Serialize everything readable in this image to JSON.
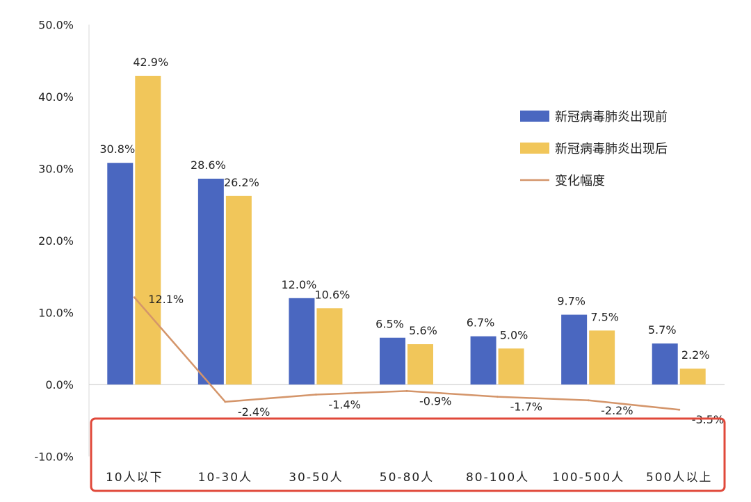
{
  "chart_data": {
    "type": "bar",
    "categories": [
      "10人以下",
      "10-30人",
      "30-50人",
      "50-80人",
      "80-100人",
      "100-500人",
      "500人以上"
    ],
    "series": [
      {
        "name": "新冠病毒肺炎出现前",
        "kind": "bar",
        "color": "#4a67c0",
        "values": [
          30.8,
          28.6,
          12.0,
          6.5,
          6.7,
          9.7,
          5.7
        ],
        "labels": [
          "30.8%",
          "28.6%",
          "12.0%",
          "6.5%",
          "6.7%",
          "9.7%",
          "5.7%"
        ]
      },
      {
        "name": "新冠病毒肺炎出现后",
        "kind": "bar",
        "color": "#f1c65a",
        "values": [
          42.9,
          26.2,
          10.6,
          5.6,
          5.0,
          7.5,
          2.2
        ],
        "labels": [
          "42.9%",
          "26.2%",
          "10.6%",
          "5.6%",
          "5.0%",
          "7.5%",
          "2.2%"
        ]
      },
      {
        "name": "变化幅度",
        "kind": "line",
        "color": "#d4956a",
        "values": [
          12.1,
          -2.4,
          -1.4,
          -0.9,
          -1.7,
          -2.2,
          -3.5
        ],
        "labels": [
          "12.1%",
          "-2.4%",
          "-1.4%",
          "-0.9%",
          "-1.7%",
          "-2.2%",
          "-3.5%"
        ]
      }
    ],
    "ylim": [
      -10,
      50
    ],
    "yticks": [
      50,
      40,
      30,
      20,
      10,
      0,
      -10
    ],
    "ytick_labels": [
      "50.0%",
      "40.0%",
      "30.0%",
      "20.0%",
      "10.0%",
      "0.0%",
      "-10.0%"
    ],
    "legend_position": "right",
    "grid": false,
    "highlight_box_color": "#e0483a"
  }
}
